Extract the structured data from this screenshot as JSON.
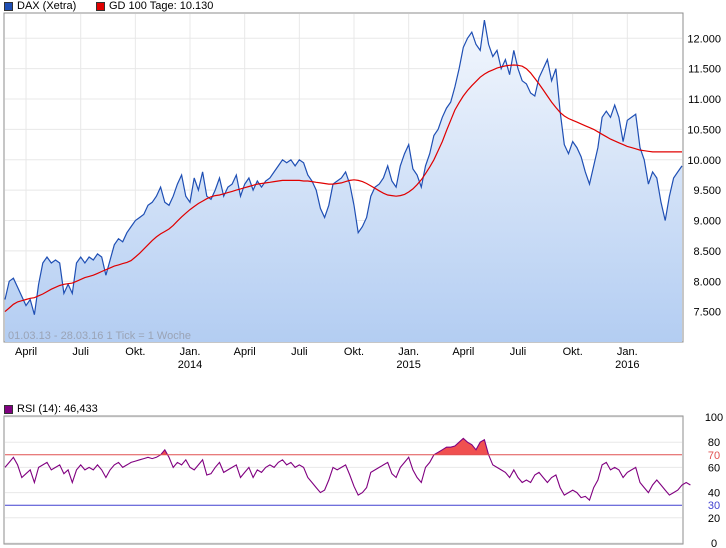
{
  "chart_data": [
    {
      "type": "area",
      "legend": [
        {
          "label": "DAX (Xetra)",
          "color": "#1f4fb4"
        },
        {
          "label": "GD 100 Tage: 10.130",
          "color": "#e00000"
        }
      ],
      "info_text": "01.03.13 - 28.03.16   1 Tick = 1 Woche",
      "ylim": [
        7000,
        12400
      ],
      "ytick_values": [
        7500,
        8000,
        8500,
        9000,
        9500,
        10000,
        10500,
        11000,
        11500,
        12000
      ],
      "ytick_labels": [
        "7.500",
        "8.000",
        "8.500",
        "9.000",
        "9.500",
        "10.000",
        "10.500",
        "11.000",
        "11.500",
        "12.000"
      ],
      "xlim": [
        0,
        161
      ],
      "x_ticks": [
        {
          "x": 5,
          "label": "April",
          "year": ""
        },
        {
          "x": 18,
          "label": "Juli",
          "year": ""
        },
        {
          "x": 31,
          "label": "Okt.",
          "year": ""
        },
        {
          "x": 44,
          "label": "Jan.",
          "year": "2014"
        },
        {
          "x": 57,
          "label": "April",
          "year": ""
        },
        {
          "x": 70,
          "label": "Juli",
          "year": ""
        },
        {
          "x": 83,
          "label": "Okt.",
          "year": ""
        },
        {
          "x": 96,
          "label": "Jan.",
          "year": "2015"
        },
        {
          "x": 109,
          "label": "April",
          "year": ""
        },
        {
          "x": 122,
          "label": "Juli",
          "year": ""
        },
        {
          "x": 135,
          "label": "Okt.",
          "year": ""
        },
        {
          "x": 148,
          "label": "Jan.",
          "year": "2016"
        }
      ],
      "series": [
        {
          "name": "DAX (Xetra)",
          "color": "#1f4fb4",
          "values": [
            7700,
            8000,
            8050,
            7900,
            7750,
            7600,
            7700,
            7450,
            7950,
            8300,
            8400,
            8300,
            8350,
            8300,
            7800,
            7950,
            7800,
            8300,
            8400,
            8300,
            8400,
            8350,
            8450,
            8400,
            8100,
            8350,
            8600,
            8700,
            8650,
            8800,
            8900,
            9000,
            9050,
            9100,
            9250,
            9300,
            9400,
            9550,
            9300,
            9250,
            9400,
            9600,
            9750,
            9400,
            9300,
            9700,
            9500,
            9800,
            9400,
            9350,
            9500,
            9700,
            9400,
            9550,
            9600,
            9750,
            9400,
            9600,
            9700,
            9500,
            9650,
            9550,
            9650,
            9700,
            9800,
            9900,
            10000,
            9950,
            10000,
            9900,
            10000,
            9950,
            9750,
            9650,
            9500,
            9200,
            9050,
            9250,
            9600,
            9650,
            9700,
            9800,
            9600,
            9250,
            8800,
            8900,
            9050,
            9400,
            9550,
            9600,
            9700,
            9900,
            9650,
            9550,
            9900,
            10100,
            10250,
            9850,
            9750,
            9550,
            9900,
            10100,
            10400,
            10500,
            10700,
            10850,
            10950,
            11200,
            11500,
            11850,
            12000,
            12100,
            11900,
            11800,
            12300,
            11900,
            11700,
            11800,
            11500,
            11650,
            11400,
            11800,
            11500,
            11300,
            11250,
            11100,
            11050,
            11350,
            11500,
            11650,
            11300,
            11500,
            10800,
            10250,
            10100,
            10300,
            10200,
            10050,
            9800,
            9600,
            9900,
            10200,
            10700,
            10800,
            10700,
            10900,
            10700,
            10300,
            10650,
            10700,
            10750,
            10200,
            10000,
            9600,
            9800,
            9700,
            9300,
            9000,
            9400,
            9700,
            9800,
            9900
          ]
        },
        {
          "name": "GD 100 Tage: 10.130",
          "color": "#e00000",
          "values": [
            7500,
            7560,
            7620,
            7660,
            7680,
            7700,
            7720,
            7730,
            7760,
            7790,
            7830,
            7870,
            7900,
            7930,
            7950,
            7960,
            7970,
            8000,
            8030,
            8060,
            8080,
            8100,
            8130,
            8160,
            8190,
            8220,
            8250,
            8270,
            8290,
            8310,
            8340,
            8400,
            8460,
            8530,
            8600,
            8670,
            8730,
            8780,
            8820,
            8860,
            8920,
            8990,
            9060,
            9120,
            9180,
            9230,
            9280,
            9320,
            9360,
            9390,
            9410,
            9420,
            9440,
            9460,
            9480,
            9500,
            9520,
            9540,
            9560,
            9580,
            9600,
            9610,
            9620,
            9630,
            9640,
            9650,
            9660,
            9660,
            9660,
            9660,
            9660,
            9650,
            9650,
            9640,
            9630,
            9620,
            9610,
            9600,
            9600,
            9610,
            9620,
            9640,
            9660,
            9670,
            9660,
            9640,
            9610,
            9570,
            9530,
            9490,
            9450,
            9420,
            9410,
            9400,
            9410,
            9430,
            9470,
            9520,
            9590,
            9670,
            9770,
            9880,
            10000,
            10150,
            10300,
            10480,
            10650,
            10820,
            10940,
            11050,
            11140,
            11220,
            11290,
            11360,
            11410,
            11450,
            11480,
            11510,
            11530,
            11545,
            11555,
            11560,
            11555,
            11540,
            11500,
            11430,
            11340,
            11250,
            11150,
            11050,
            10950,
            10860,
            10780,
            10720,
            10680,
            10650,
            10620,
            10590,
            10560,
            10530,
            10500,
            10460,
            10420,
            10380,
            10340,
            10310,
            10280,
            10250,
            10220,
            10200,
            10180,
            10160,
            10150,
            10140,
            10130,
            10130,
            10130,
            10130,
            10130,
            10130,
            10130,
            10130
          ]
        }
      ]
    },
    {
      "type": "line",
      "legend": [
        {
          "label": "RSI (14): 46,433",
          "color": "#800080"
        }
      ],
      "ylim": [
        0,
        100
      ],
      "ytick_values": [
        0,
        20,
        30,
        40,
        60,
        70,
        80,
        100
      ],
      "ytick_labels": [
        "0",
        "20",
        "30",
        "40",
        "60",
        "70",
        "80",
        "100"
      ],
      "reference_lines": [
        {
          "value": 70,
          "label": "70",
          "color": "#e05050"
        },
        {
          "value": 30,
          "label": "30",
          "color": "#4040d0"
        }
      ],
      "series": [
        {
          "name": "RSI (14): 46,433",
          "color": "#800080",
          "values": [
            60,
            64,
            68,
            62,
            52,
            55,
            58,
            48,
            60,
            62,
            64,
            58,
            60,
            62,
            55,
            58,
            48,
            58,
            62,
            58,
            60,
            58,
            62,
            58,
            52,
            58,
            62,
            64,
            60,
            62,
            64,
            65,
            66,
            67,
            68,
            67,
            68,
            70,
            74,
            68,
            60,
            64,
            62,
            66,
            60,
            58,
            62,
            66,
            54,
            55,
            60,
            64,
            56,
            58,
            60,
            62,
            52,
            56,
            60,
            52,
            58,
            56,
            60,
            62,
            60,
            64,
            66,
            62,
            64,
            60,
            62,
            60,
            52,
            48,
            44,
            40,
            42,
            50,
            60,
            58,
            60,
            62,
            54,
            45,
            38,
            40,
            44,
            56,
            58,
            60,
            62,
            64,
            55,
            52,
            60,
            64,
            68,
            58,
            52,
            48,
            60,
            64,
            70,
            72,
            74,
            76,
            76,
            77,
            80,
            83,
            80,
            78,
            74,
            80,
            82,
            70,
            62,
            60,
            58,
            56,
            52,
            58,
            52,
            48,
            50,
            48,
            54,
            56,
            52,
            48,
            52,
            54,
            44,
            38,
            40,
            42,
            40,
            36,
            37,
            34,
            44,
            50,
            62,
            64,
            58,
            60,
            58,
            52,
            56,
            58,
            60,
            48,
            44,
            40,
            46,
            50,
            46,
            42,
            38,
            40,
            42,
            46,
            48,
            46
          ]
        }
      ]
    }
  ]
}
